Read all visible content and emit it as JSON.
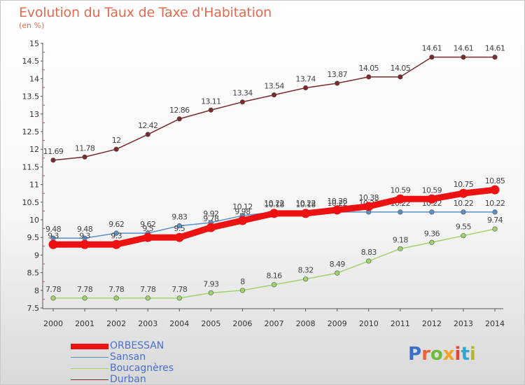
{
  "header": {
    "title": "Evolution du Taux de Taxe d'Habitation",
    "subtitle": "(en %)"
  },
  "logo": {
    "text": "Proxiti",
    "letter_colors": [
      "#3a6fc9",
      "#e8643b",
      "#6cbc3c",
      "#f2a326",
      "#e0473a",
      "#2fa8d8",
      "#b5b81f"
    ]
  },
  "chart_data": {
    "type": "line",
    "title": "Evolution du Taux de Taxe d'Habitation",
    "subtitle": "(en %)",
    "x": [
      "2000",
      "2001",
      "2002",
      "2003",
      "2004",
      "2005",
      "2006",
      "2007",
      "2008",
      "2009",
      "2010",
      "2011",
      "2012",
      "2013",
      "2014"
    ],
    "ylim": [
      7.5,
      15
    ],
    "yticks": [
      "7.5",
      "8",
      "8.5",
      "9",
      "9.5",
      "10",
      "10.5",
      "11",
      "11.5",
      "12",
      "12.5",
      "13",
      "13.5",
      "14",
      "14.5",
      "15"
    ],
    "grid": false,
    "legend_position": "bottom-left",
    "series": [
      {
        "name": "Durban",
        "color": "#7a2a2a",
        "values": [
          11.69,
          11.78,
          12,
          12.42,
          12.86,
          13.11,
          13.34,
          13.54,
          13.74,
          13.87,
          14.05,
          14.05,
          14.61,
          14.61,
          14.61
        ],
        "labels": [
          "11.69",
          "11.78",
          "12",
          "12.42",
          "12.86",
          "13.11",
          "13.34",
          "13.54",
          "13.74",
          "13.87",
          "14.05",
          "14.05",
          "14.61",
          "14.61",
          "14.61"
        ]
      },
      {
        "name": "Boucagnères",
        "color": "#9fd36a",
        "values": [
          7.78,
          7.78,
          7.78,
          7.78,
          7.78,
          7.93,
          8,
          8.16,
          8.32,
          8.49,
          8.83,
          9.18,
          9.36,
          9.55,
          9.74
        ],
        "labels": [
          "7.78",
          "7.78",
          "7.78",
          "7.78",
          "7.78",
          "7.93",
          "8",
          "8.16",
          "8.32",
          "8.49",
          "8.83",
          "9.18",
          "9.36",
          "9.55",
          "9.74"
        ]
      },
      {
        "name": "Sansan",
        "color": "#5a90c8",
        "values": [
          9.48,
          9.48,
          9.62,
          9.62,
          9.83,
          9.92,
          10.12,
          10.22,
          10.22,
          10.22,
          10.22,
          10.22,
          10.22,
          10.22,
          10.22
        ],
        "labels": [
          "9.48",
          "9.48",
          "9.62",
          "9.62",
          "9.83",
          "9.92",
          "10.12",
          "10.22",
          "10.22",
          "10.22",
          "10.22",
          "10.22",
          "10.22",
          "10.22",
          "10.22"
        ]
      },
      {
        "name": "ORBESSAN",
        "color": "#ee1111",
        "values": [
          9.3,
          9.3,
          9.3,
          9.5,
          9.5,
          9.78,
          9.98,
          10.18,
          10.18,
          10.28,
          10.38,
          10.59,
          10.59,
          10.75,
          10.85
        ],
        "labels": [
          "9.3",
          "9.3",
          "9.3",
          "9.5",
          "9.5",
          "9.78",
          "9.98",
          "10.18",
          "10.18",
          "10.28",
          "10.38",
          "10.59",
          "10.59",
          "10.75",
          "10.85"
        ]
      }
    ]
  },
  "legend": {
    "items": [
      {
        "label": "ORBESSAN",
        "color": "#ee1111"
      },
      {
        "label": "Sansan",
        "color": "#5a90c8"
      },
      {
        "label": "Boucagnères",
        "color": "#9fd36a"
      },
      {
        "label": "Durban",
        "color": "#7a2a2a"
      }
    ]
  }
}
